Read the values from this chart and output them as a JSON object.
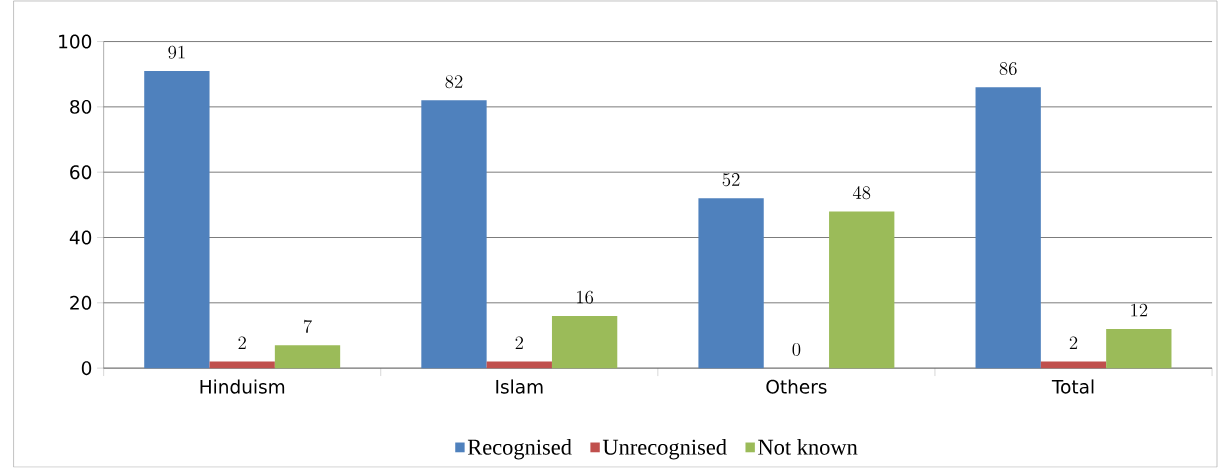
{
  "chart_data": {
    "type": "bar",
    "categories": [
      "Hinduism",
      "Islam",
      "Others",
      "Total"
    ],
    "series": [
      {
        "name": "Recognised",
        "color": "#4f81bd",
        "values": [
          91,
          82,
          52,
          86
        ]
      },
      {
        "name": "Unrecognised",
        "color": "#c0504d",
        "values": [
          2,
          2,
          0,
          2
        ]
      },
      {
        "name": "Not known",
        "color": "#9bbb59",
        "values": [
          7,
          16,
          48,
          12
        ]
      }
    ],
    "ylim": [
      0,
      100
    ],
    "yticks": [
      0,
      20,
      40,
      60,
      80,
      100
    ],
    "grid": "y",
    "legend": "bottom",
    "data_labels": true
  }
}
